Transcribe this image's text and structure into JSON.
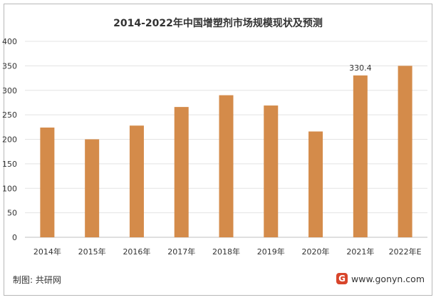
{
  "chart_data": {
    "type": "bar",
    "title": "2014-2022年中国增塑剂市场规模现状及预测",
    "categories": [
      "2014年",
      "2015年",
      "2016年",
      "2017年",
      "2018年",
      "2019年",
      "2020年",
      "2021年",
      "2022年E"
    ],
    "values": [
      224,
      200,
      228,
      266,
      290,
      269,
      216,
      330.4,
      350
    ],
    "data_labels": [
      null,
      null,
      null,
      null,
      null,
      null,
      null,
      "330.4",
      null
    ],
    "ylim": [
      0,
      400
    ],
    "yticks": [
      "0",
      "50",
      "100",
      "150",
      "200",
      "250",
      "300",
      "350",
      "400"
    ],
    "grid": true,
    "bar_color": "#d48b4a"
  },
  "footer": {
    "source": "制图: 共研网",
    "website": "www.gonyn.com",
    "logo_letter": "G"
  }
}
